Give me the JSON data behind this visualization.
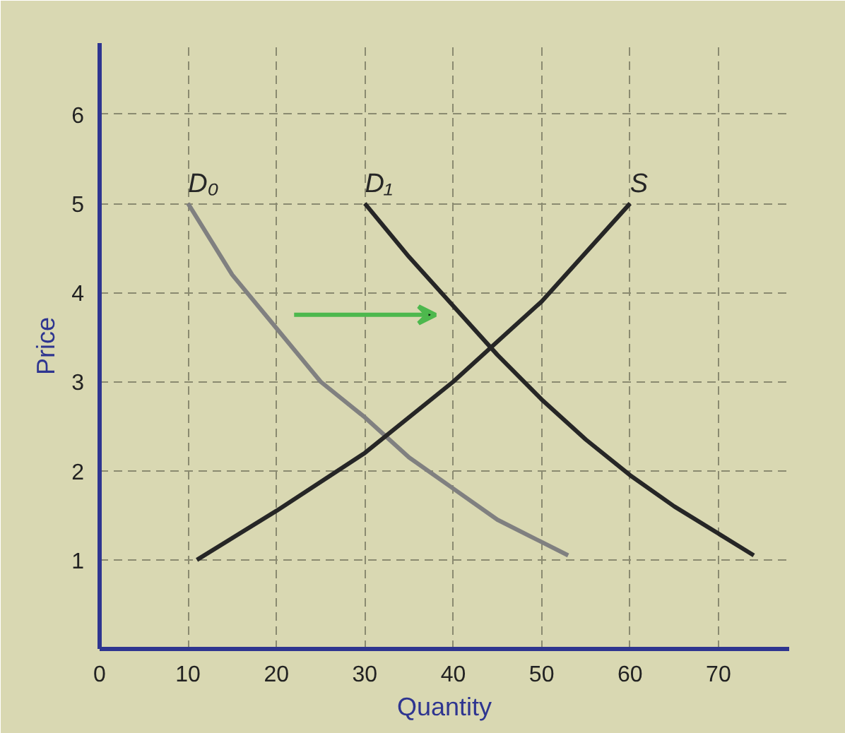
{
  "chart_data": {
    "type": "line",
    "xlabel": "Quantity",
    "ylabel": "Price",
    "xlim": [
      0,
      78
    ],
    "ylim": [
      0,
      6.8
    ],
    "xticks": [
      0,
      10,
      20,
      30,
      40,
      50,
      60,
      70
    ],
    "yticks": [
      1,
      2,
      3,
      4,
      5,
      6
    ],
    "grid": true,
    "marker": "none",
    "line_style": "solid",
    "series": [
      {
        "name": "D₀",
        "color": "#808080",
        "x": [
          10,
          15,
          20,
          25,
          30,
          35,
          40,
          45,
          53
        ],
        "values": [
          5,
          4.2,
          3.6,
          3.0,
          2.6,
          2.15,
          1.8,
          1.45,
          1.05
        ]
      },
      {
        "name": "D₁",
        "color": "#262626",
        "x": [
          30,
          35,
          40,
          45,
          50,
          55,
          60,
          65,
          74
        ],
        "values": [
          5,
          4.4,
          3.85,
          3.3,
          2.8,
          2.35,
          1.95,
          1.6,
          1.05
        ]
      },
      {
        "name": "S",
        "color": "#262626",
        "x": [
          11,
          20,
          30,
          40,
          50,
          60
        ],
        "values": [
          1,
          1.55,
          2.2,
          3.0,
          3.9,
          5
        ]
      }
    ]
  }
}
